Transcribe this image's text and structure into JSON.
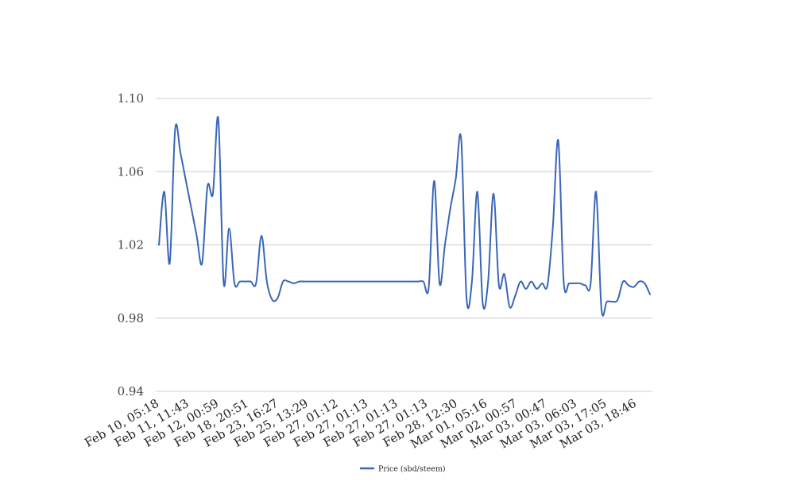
{
  "chart_data": {
    "type": "line",
    "title": "",
    "xlabel": "",
    "ylabel": "",
    "ylim": [
      0.94,
      1.1
    ],
    "yticks": [
      "0.94",
      "0.98",
      "1.02",
      "1.06",
      "1.10"
    ],
    "grid": true,
    "legend": "bottom-center",
    "x_tick_labels": [
      "Feb 10, 05:18",
      "Feb 11, 11:43",
      "Feb 12, 00:59",
      "Feb 18, 20:51",
      "Feb 23, 16:27",
      "Feb 25, 13:29",
      "Feb 27, 01:12",
      "Feb 27, 01:13",
      "Feb 27, 01:13",
      "Feb 27, 01:13",
      "Feb 28, 12:30",
      "Mar 01, 05:16",
      "Mar 02, 00:57",
      "Mar 03, 00:47",
      "Mar 03, 06:03",
      "Mar 03, 17:05",
      "Mar 03, 18:46"
    ],
    "series": [
      {
        "name": "Price (sbd/steem)",
        "color": "#3a66b8",
        "values": [
          1.02,
          1.049,
          1.01,
          1.083,
          1.07,
          1.055,
          1.04,
          1.025,
          1.01,
          1.052,
          1.048,
          1.089,
          0.999,
          1.029,
          0.999,
          1.0,
          1.0,
          1.0,
          0.999,
          1.025,
          1.0,
          0.99,
          0.991,
          1.0,
          1.0,
          0.999,
          1.0,
          1.0,
          1.0,
          1.0,
          1.0,
          1.0,
          1.0,
          1.0,
          1.0,
          1.0,
          1.0,
          1.0,
          1.0,
          1.0,
          1.0,
          1.0,
          1.0,
          1.0,
          1.0,
          1.0,
          1.0,
          1.0,
          1.0,
          1.0,
          0.997,
          1.055,
          0.999,
          1.02,
          1.04,
          1.056,
          1.078,
          0.991,
          1.0,
          1.049,
          0.988,
          1.0,
          1.048,
          0.998,
          1.004,
          0.986,
          0.992,
          1.0,
          0.996,
          1.0,
          0.996,
          0.999,
          0.998,
          1.03,
          1.077,
          1.0,
          0.999,
          0.999,
          0.999,
          0.998,
          0.999,
          1.049,
          0.985,
          0.989,
          0.989,
          0.99,
          1.0,
          0.998,
          0.997,
          1.0,
          0.999,
          0.993
        ]
      }
    ]
  }
}
